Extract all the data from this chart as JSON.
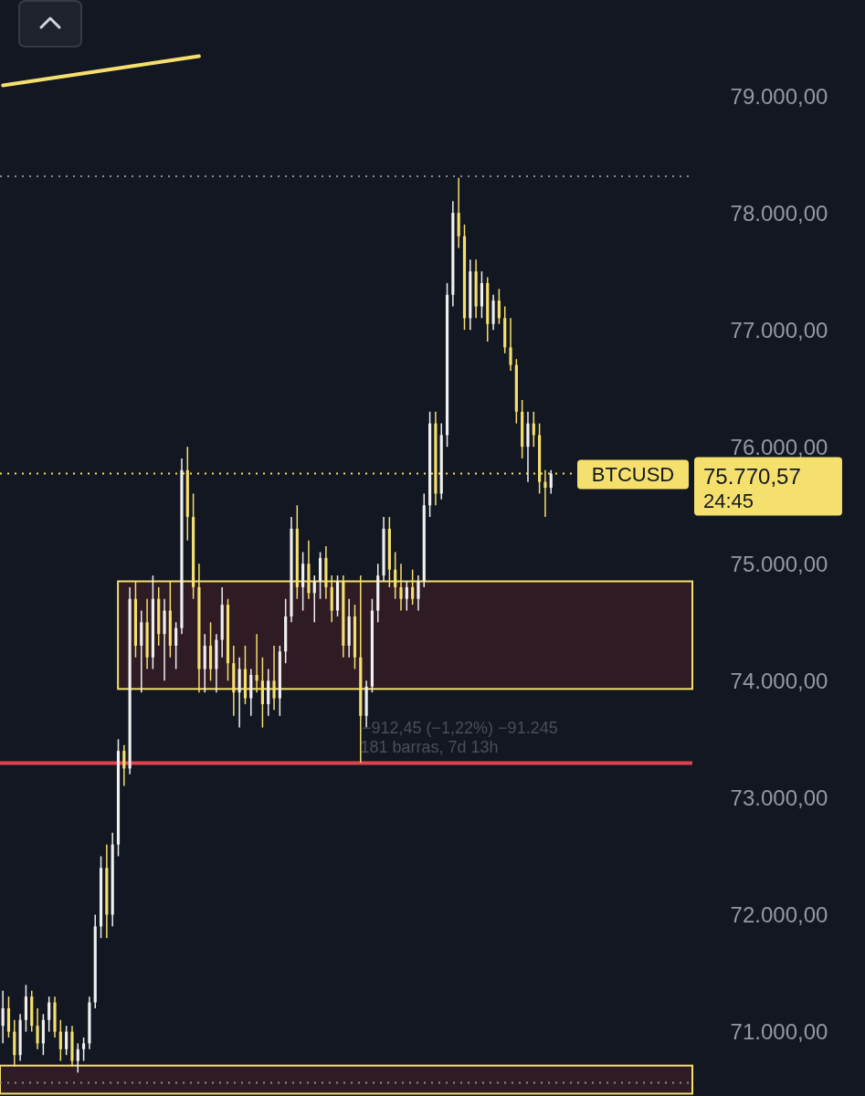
{
  "chart_data": {
    "type": "candlestick",
    "categories": [
      null,
      null,
      null,
      null,
      null,
      null,
      null,
      null,
      null,
      null,
      null,
      null,
      null,
      null,
      null,
      null,
      null,
      null,
      null,
      null,
      null,
      null,
      null,
      null,
      null,
      null,
      null,
      null,
      null,
      null,
      null,
      null,
      null,
      null,
      null,
      null,
      null,
      null,
      null,
      null,
      null,
      null,
      null,
      null,
      null,
      null,
      null,
      null,
      null,
      null,
      null,
      null,
      null,
      null,
      null,
      null,
      null,
      null,
      null,
      null,
      null,
      null,
      null,
      null,
      null,
      null,
      null,
      null,
      null,
      null,
      null,
      null,
      null,
      null,
      null,
      null,
      null,
      null,
      null,
      null,
      null,
      null,
      null,
      null,
      null,
      null,
      null,
      null,
      null,
      null,
      null,
      null,
      null,
      null,
      null,
      null,
      null,
      null,
      null,
      null,
      null,
      null,
      null,
      null,
      null,
      null,
      null,
      null,
      null,
      null,
      null,
      null,
      null,
      null,
      null,
      null,
      null,
      null,
      null,
      null
    ],
    "ohlc": [
      [
        71050,
        71350,
        70900,
        71200
      ],
      [
        71200,
        71300,
        70950,
        71000
      ],
      [
        71000,
        71100,
        70700,
        70800
      ],
      [
        70800,
        71150,
        70750,
        71100
      ],
      [
        71100,
        71400,
        71000,
        71300
      ],
      [
        71300,
        71350,
        71000,
        71050
      ],
      [
        71050,
        71200,
        70850,
        70900
      ],
      [
        70900,
        71150,
        70800,
        71100
      ],
      [
        71100,
        71300,
        71000,
        71250
      ],
      [
        71250,
        71300,
        70950,
        71000
      ],
      [
        71000,
        71100,
        70750,
        70850
      ],
      [
        70850,
        71050,
        70800,
        71000
      ],
      [
        71000,
        71050,
        70700,
        70750
      ],
      [
        70750,
        70900,
        70650,
        70850
      ],
      [
        70850,
        70950,
        70750,
        70900
      ],
      [
        70900,
        71300,
        70850,
        71250
      ],
      [
        71250,
        72000,
        71200,
        71900
      ],
      [
        71900,
        72500,
        71800,
        72400
      ],
      [
        72400,
        72600,
        71800,
        72000
      ],
      [
        72000,
        72700,
        71900,
        72600
      ],
      [
        72600,
        73500,
        72500,
        73400
      ],
      [
        73400,
        73450,
        73100,
        73250
      ],
      [
        73250,
        74800,
        73200,
        74700
      ],
      [
        74700,
        74850,
        74200,
        74300
      ],
      [
        74300,
        74600,
        73900,
        74500
      ],
      [
        74500,
        74700,
        74100,
        74200
      ],
      [
        74200,
        74900,
        74100,
        74700
      ],
      [
        74700,
        74800,
        74300,
        74400
      ],
      [
        74400,
        74700,
        74000,
        74600
      ],
      [
        74600,
        74850,
        74200,
        74300
      ],
      [
        74300,
        74500,
        74100,
        74450
      ],
      [
        74450,
        75900,
        74400,
        75800
      ],
      [
        75800,
        76000,
        75200,
        75400
      ],
      [
        75400,
        75600,
        74700,
        74800
      ],
      [
        74800,
        75000,
        73900,
        74100
      ],
      [
        74100,
        74400,
        73900,
        74300
      ],
      [
        74300,
        74500,
        74000,
        74100
      ],
      [
        74100,
        74400,
        73900,
        74350
      ],
      [
        74350,
        74800,
        74200,
        74650
      ],
      [
        74650,
        74700,
        74000,
        74150
      ],
      [
        74150,
        74300,
        73700,
        73900
      ],
      [
        73900,
        74200,
        73600,
        74100
      ],
      [
        74100,
        74300,
        73800,
        73850
      ],
      [
        73850,
        74100,
        73700,
        74050
      ],
      [
        74050,
        74400,
        73900,
        74000
      ],
      [
        74000,
        74200,
        73600,
        73800
      ],
      [
        73800,
        74100,
        73700,
        74000
      ],
      [
        74000,
        74300,
        73750,
        73850
      ],
      [
        73850,
        74300,
        73700,
        74250
      ],
      [
        74250,
        74700,
        74150,
        74550
      ],
      [
        74550,
        75400,
        74500,
        75300
      ],
      [
        75300,
        75500,
        74700,
        74800
      ],
      [
        74800,
        75100,
        74600,
        75000
      ],
      [
        75000,
        75200,
        74700,
        74750
      ],
      [
        74750,
        74900,
        74500,
        74850
      ],
      [
        74850,
        75100,
        74700,
        75050
      ],
      [
        75050,
        75150,
        74700,
        74800
      ],
      [
        74800,
        74900,
        74500,
        74600
      ],
      [
        74600,
        74900,
        74550,
        74850
      ],
      [
        74850,
        74900,
        74200,
        74300
      ],
      [
        74300,
        74700,
        74200,
        74550
      ],
      [
        74550,
        74650,
        74100,
        74200
      ],
      [
        74200,
        74900,
        73300,
        73700
      ],
      [
        73700,
        74000,
        73600,
        73950
      ],
      [
        73950,
        74700,
        73900,
        74600
      ],
      [
        74600,
        75000,
        74500,
        74900
      ],
      [
        74900,
        75400,
        74850,
        75300
      ],
      [
        75300,
        75400,
        74800,
        74950
      ],
      [
        74950,
        75100,
        74700,
        74800
      ],
      [
        74800,
        75000,
        74600,
        74700
      ],
      [
        74700,
        74850,
        74600,
        74800
      ],
      [
        74800,
        74950,
        74650,
        74700
      ],
      [
        74700,
        74900,
        74600,
        74850
      ],
      [
        74850,
        75600,
        74800,
        75500
      ],
      [
        75500,
        76300,
        75400,
        76200
      ],
      [
        76200,
        76300,
        75500,
        75600
      ],
      [
        75600,
        76200,
        75550,
        76100
      ],
      [
        76100,
        77400,
        76000,
        77300
      ],
      [
        77300,
        78100,
        77200,
        78000
      ],
      [
        78000,
        78300,
        77700,
        77800
      ],
      [
        77800,
        77900,
        77000,
        77100
      ],
      [
        77100,
        77600,
        77000,
        77500
      ],
      [
        77500,
        77600,
        77100,
        77200
      ],
      [
        77200,
        77500,
        77100,
        77400
      ],
      [
        77400,
        77450,
        76900,
        77050
      ],
      [
        77050,
        77300,
        77000,
        77250
      ],
      [
        77250,
        77350,
        77050,
        77100
      ],
      [
        77100,
        77200,
        76800,
        76850
      ],
      [
        76850,
        77100,
        76650,
        76700
      ],
      [
        76700,
        76750,
        76200,
        76300
      ],
      [
        76300,
        76400,
        75900,
        76000
      ],
      [
        76000,
        76300,
        75700,
        76200
      ],
      [
        76200,
        76300,
        76000,
        76100
      ],
      [
        76100,
        76200,
        75600,
        75700
      ],
      [
        75700,
        75800,
        75400,
        75650
      ],
      [
        75650,
        75800,
        75600,
        75770.57
      ],
      null,
      null,
      null,
      null,
      null,
      null,
      null,
      null,
      null,
      null,
      null,
      null,
      null,
      null,
      null,
      null,
      null,
      null,
      null,
      null,
      null,
      null,
      null,
      null
    ],
    "colors": [
      "#f0f0f0",
      "#f5e06e",
      "#f5e06e",
      "#f0f0f0",
      "#f0f0f0",
      "#f5e06e",
      "#f5e06e",
      "#f0f0f0",
      "#f0f0f0",
      "#f5e06e",
      "#f5e06e",
      "#f0f0f0",
      "#f5e06e",
      "#f0f0f0",
      "#f0f0f0",
      "#f0f0f0",
      "#f0f0f0",
      "#f0f0f0",
      "#f5e06e",
      "#f0f0f0",
      "#f0f0f0",
      "#f5e06e",
      "#f0f0f0",
      "#f5e06e",
      "#f0f0f0",
      "#f5e06e",
      "#f0f0f0",
      "#f5e06e",
      "#f0f0f0",
      "#f5e06e",
      "#f0f0f0",
      "#f0f0f0",
      "#f5e06e",
      "#f5e06e",
      "#f5e06e",
      "#f0f0f0",
      "#f5e06e",
      "#f0f0f0",
      "#f0f0f0",
      "#f5e06e",
      "#f5e06e",
      "#f0f0f0",
      "#f5e06e",
      "#f0f0f0",
      "#f5e06e",
      "#f5e06e",
      "#f0f0f0",
      "#f5e06e",
      "#f0f0f0",
      "#f0f0f0",
      "#f0f0f0",
      "#f5e06e",
      "#f0f0f0",
      "#f5e06e",
      "#f0f0f0",
      "#f0f0f0",
      "#f5e06e",
      "#f5e06e",
      "#f0f0f0",
      "#f5e06e",
      "#f0f0f0",
      "#f5e06e",
      "#f5e06e",
      "#f0f0f0",
      "#f0f0f0",
      "#f0f0f0",
      "#f0f0f0",
      "#f5e06e",
      "#f5e06e",
      "#f5e06e",
      "#f0f0f0",
      "#f5e06e",
      "#f0f0f0",
      "#f0f0f0",
      "#f0f0f0",
      "#f5e06e",
      "#f0f0f0",
      "#f0f0f0",
      "#f0f0f0",
      "#f5e06e",
      "#f5e06e",
      "#f0f0f0",
      "#f5e06e",
      "#f0f0f0",
      "#f5e06e",
      "#f0f0f0",
      "#f5e06e",
      "#f5e06e",
      "#f5e06e",
      "#f5e06e",
      "#f5e06e",
      "#f0f0f0",
      "#f5e06e",
      "#f5e06e",
      "#f5e06e",
      "#f0f0f0",
      null,
      null,
      null,
      null,
      null,
      null,
      null,
      null,
      null,
      null,
      null,
      null,
      null,
      null,
      null,
      null,
      null,
      null,
      null,
      null,
      null,
      null,
      null,
      null
    ],
    "series": [
      {
        "type": "line",
        "color": "#f5e06e",
        "values": [
          79090,
          null,
          null,
          null,
          null,
          null,
          null,
          null,
          null,
          null,
          null,
          null,
          null,
          null,
          null,
          null,
          null,
          null,
          null,
          null,
          null,
          null,
          null,
          null,
          null,
          null,
          null,
          null,
          null,
          null,
          null,
          null,
          null,
          null,
          79340,
          null,
          null,
          null,
          null,
          null,
          null,
          null,
          null,
          null,
          null,
          null,
          null,
          null,
          null,
          null,
          null,
          null,
          null,
          null,
          null,
          null,
          null,
          null,
          null,
          null,
          null,
          null,
          null,
          null,
          null,
          null,
          null,
          null,
          null,
          null,
          null,
          null,
          null,
          null,
          null,
          null,
          null,
          null,
          null,
          null,
          null,
          null,
          null,
          null,
          null,
          null,
          null,
          null,
          null,
          null,
          null,
          null,
          null,
          null,
          null,
          null,
          null,
          null,
          null,
          null,
          null,
          null,
          null,
          null,
          null,
          null,
          null,
          null,
          null,
          null,
          null,
          null,
          null,
          null,
          null,
          null,
          null,
          null,
          null,
          null
        ]
      }
    ],
    "ylim": [
      70450,
      79820
    ],
    "yticks": [
      {
        "value": 71000,
        "label": "71.000,00"
      },
      {
        "value": 72000,
        "label": "72.000,00"
      },
      {
        "value": 73000,
        "label": "73.000,00"
      },
      {
        "value": 74000,
        "label": "74.000,00"
      },
      {
        "value": 75000,
        "label": "75.000,00"
      },
      {
        "value": 76000,
        "label": "76.000,00"
      },
      {
        "value": 77000,
        "label": "77.000,00"
      },
      {
        "value": 78000,
        "label": "78.000,00"
      },
      {
        "value": 79000,
        "label": "79.000,00"
      }
    ],
    "tick_labels": "y",
    "grid": false,
    "bands": [
      {
        "axis": "y",
        "from": 73930,
        "to": 74850,
        "color": "#f5e06e"
      },
      {
        "axis": "y",
        "from": 70470,
        "to": 70710,
        "color": "#f5e06e"
      }
    ],
    "ref_lines": [
      {
        "axis": "y",
        "value": 78313,
        "color": "#8a8d96",
        "line_style": "dotted"
      },
      {
        "axis": "y",
        "value": 75770.57,
        "label": "BTCUSD",
        "color": "#f5e06e",
        "line_style": "dotted"
      },
      {
        "axis": "y",
        "value": 73297,
        "color": "#e0424f",
        "line_style": "solid"
      },
      {
        "axis": "y",
        "value": 70563,
        "color": "#8a8d96",
        "line_style": "dotted"
      }
    ],
    "annotations": [
      "75.770,57",
      "24:45",
      "−912,45 (−1,22%) −91.245",
      "181 barras, 7d 13h"
    ]
  }
}
